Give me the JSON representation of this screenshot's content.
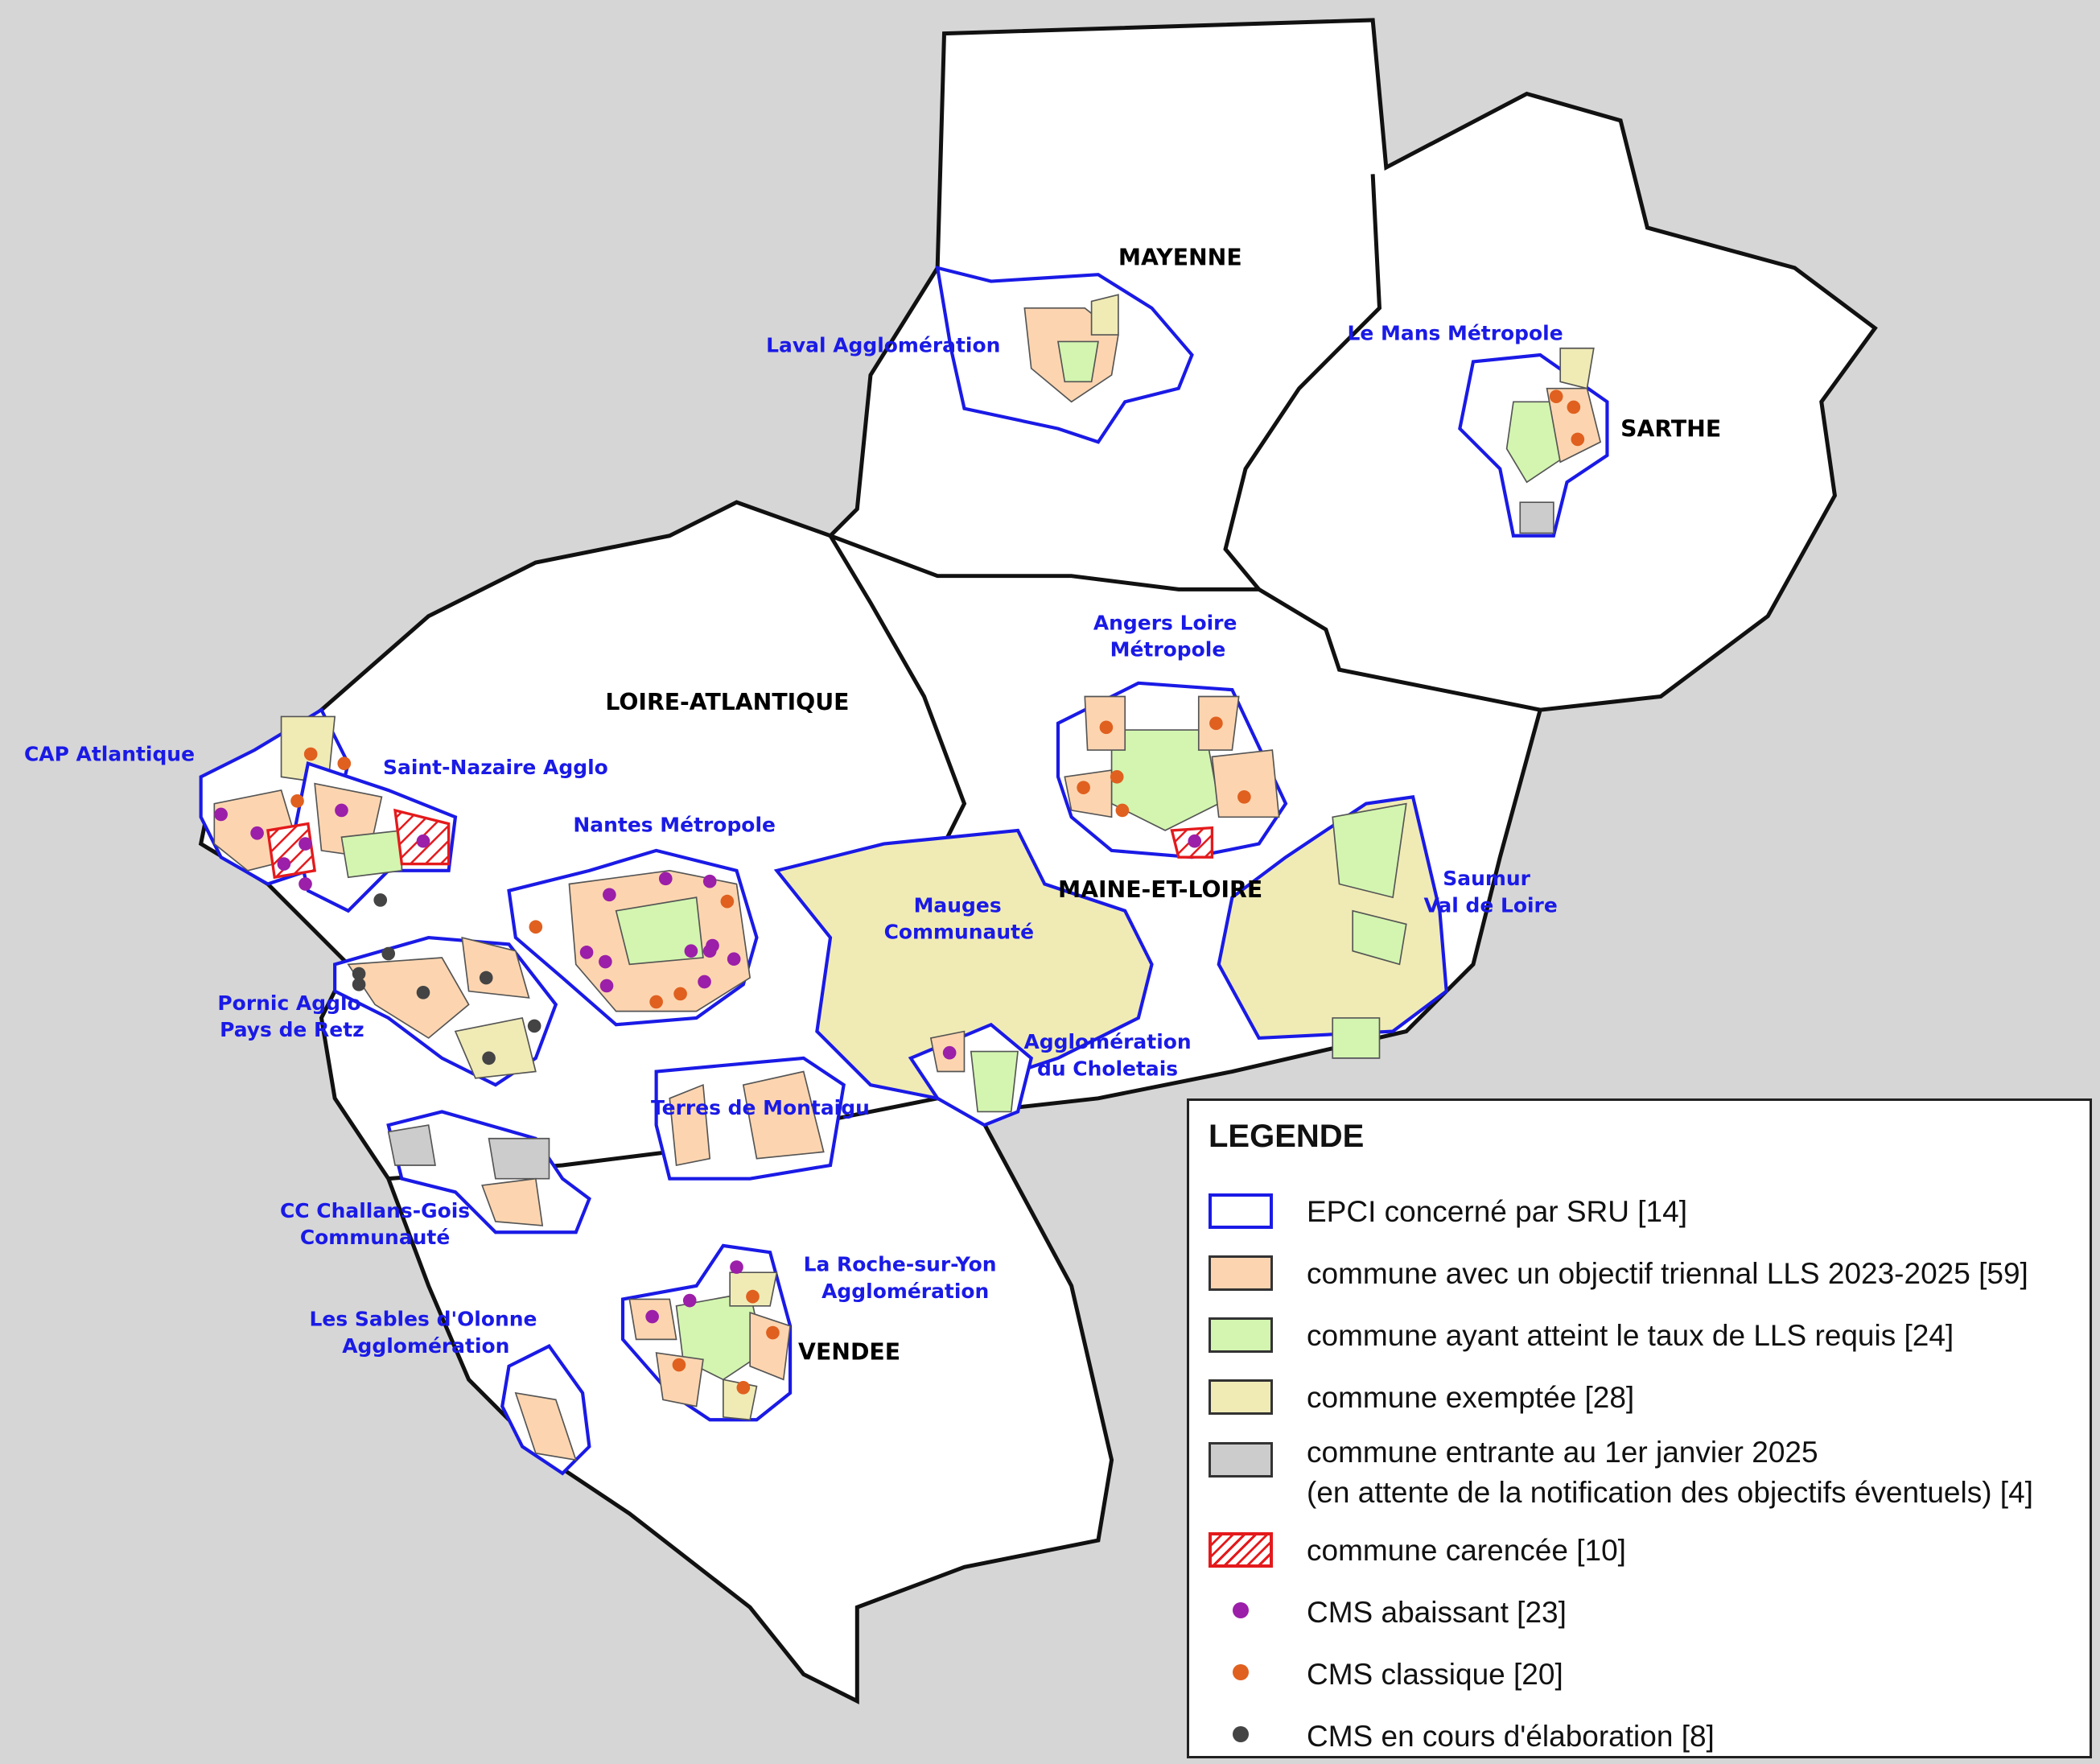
{
  "colors": {
    "epci_border": "#1a1ae6",
    "objectif": "#fcd5b0",
    "atteint": "#d3f5b0",
    "exemptee": "#f0ebb5",
    "entrante": "#cccccc",
    "carencee": "#e41a1c",
    "cms_abaissant": "#9b1fa8",
    "cms_classique": "#e0601f",
    "cms_elaboration": "#444444",
    "background": "#d6d6d6"
  },
  "departments": [
    "MAYENNE",
    "SARTHE",
    "LOIRE-ATLANTIQUE",
    "MAINE-ET-LOIRE",
    "VENDEE"
  ],
  "epci": [
    [
      "Laval Agglomération"
    ],
    [
      "Le Mans Métropole"
    ],
    [
      "Angers Loire",
      "Métropole"
    ],
    [
      "CAP Atlantique"
    ],
    [
      "Saint-Nazaire Agglo"
    ],
    [
      "Nantes Métropole"
    ],
    [
      "Mauges",
      "Communauté"
    ],
    [
      "Saumur",
      "Val de Loire"
    ],
    [
      "Pornic Agglo",
      "Pays de Retz"
    ],
    [
      "Agglomération",
      "du Choletais"
    ],
    [
      "Terres de Montaigu"
    ],
    [
      "CC Challans-Gois",
      "Communauté"
    ],
    [
      "La Roche-sur-Yon",
      "Agglomération"
    ],
    [
      "Les Sables d'Olonne",
      "Agglomération"
    ]
  ],
  "legend": {
    "title": "LEGENDE",
    "items": [
      {
        "label": "EPCI concerné par SRU [14]",
        "type": "outline"
      },
      {
        "label": "commune avec un objectif triennal LLS 2023-2025 [59]",
        "type": "fill"
      },
      {
        "label": "commune ayant atteint le taux de LLS requis [24]",
        "type": "fill"
      },
      {
        "label": "commune exemptée [28]",
        "type": "fill"
      },
      {
        "label": "commune entrante au 1er janvier 2025",
        "label2": "(en attente de la notification des objectifs éventuels) [4]",
        "type": "fill"
      },
      {
        "label": "commune carencée [10]",
        "type": "hatch"
      },
      {
        "label": "CMS abaissant [23]",
        "type": "dot"
      },
      {
        "label": "CMS classique [20]",
        "type": "dot"
      },
      {
        "label": "CMS en cours d'élaboration [8]",
        "type": "dot"
      }
    ]
  }
}
